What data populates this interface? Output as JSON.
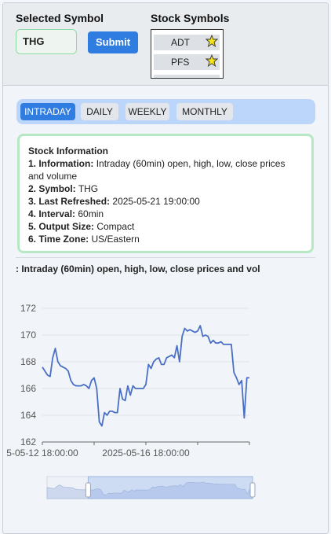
{
  "selected_symbol": {
    "label": "Selected Symbol",
    "value": "THG",
    "submit_label": "Submit"
  },
  "stock_symbols": {
    "label": "Stock Symbols",
    "items": [
      {
        "symbol": "ADT",
        "favorite_icon": "star-icon"
      },
      {
        "symbol": "PFS",
        "favorite_icon": "star-icon"
      }
    ]
  },
  "tabs": [
    {
      "label": "INTRADAY",
      "active": true
    },
    {
      "label": "DAILY",
      "active": false
    },
    {
      "label": "WEEKLY",
      "active": false
    },
    {
      "label": "MONTHLY",
      "active": false
    }
  ],
  "stock_info": {
    "title": "Stock Information",
    "lines": [
      {
        "key": "1. Information:",
        "value": "Intraday (60min) open, high, low, close prices and volume"
      },
      {
        "key": "2. Symbol:",
        "value": "THG"
      },
      {
        "key": "3. Last Refreshed:",
        "value": "2025-05-21 19:00:00"
      },
      {
        "key": "4. Interval:",
        "value": "60min"
      },
      {
        "key": "5. Output Size:",
        "value": "Compact"
      },
      {
        "key": "6. Time Zone:",
        "value": "US/Eastern"
      }
    ]
  },
  "chart_heading": ": Intraday (60min) open, high, low, close prices and vol",
  "colors": {
    "accent": "#2f7de1",
    "tab_bar": "#bcd6fb",
    "card_border": "#b5e8c3",
    "line": "#4a6fc4",
    "star": "#f5e31a"
  },
  "chart_data": {
    "type": "line",
    "title": "",
    "xlabel": "",
    "ylabel": "",
    "ylim": [
      162,
      172
    ],
    "yticks": [
      "172",
      "170",
      "168",
      "166",
      "164",
      "162"
    ],
    "xtick_labels": [
      "5-05-12 18:00:00",
      "2025-05-16 18:00:00"
    ],
    "grid": true,
    "series": [
      {
        "values": [
          167.6,
          167.3,
          167.0,
          166.9,
          168.3,
          169.0,
          168.0,
          167.7,
          167.6,
          167.5,
          167.3,
          166.6,
          166.3,
          166.2,
          166.2,
          166.2,
          166.3,
          166.2,
          166.0,
          166.6,
          166.8,
          166.0,
          163.5,
          163.2,
          164.2,
          164.0,
          164.3,
          164.3,
          164.2,
          164.2,
          166.0,
          165.2,
          165.1,
          166.2,
          165.5,
          166.2,
          166.0,
          166.0,
          166.0,
          166.0,
          166.3,
          167.8,
          167.5,
          168.0,
          168.2,
          168.3,
          167.8,
          167.8,
          168.3,
          168.4,
          168.5,
          168.3,
          169.2,
          168.0,
          169.9,
          170.5,
          170.3,
          170.4,
          170.3,
          170.2,
          170.3,
          170.7,
          169.9,
          170.0,
          169.9,
          169.4,
          169.6,
          169.4,
          169.4,
          169.5,
          169.3,
          169.3,
          169.3,
          169.3,
          167.2,
          166.8,
          166.3,
          166.6,
          163.8,
          166.8,
          166.8
        ]
      }
    ]
  },
  "zoom_slider": {
    "start": 0.2,
    "end": 1.0
  }
}
